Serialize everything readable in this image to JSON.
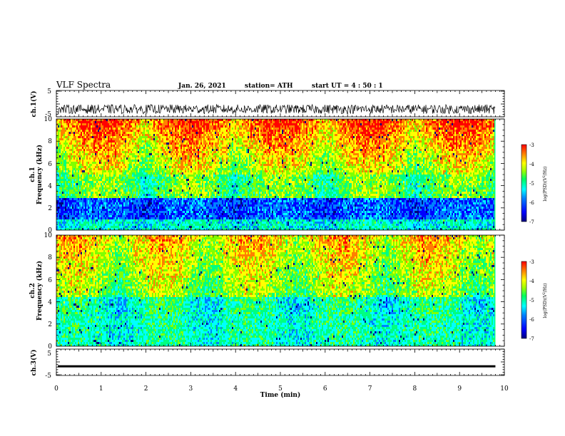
{
  "header": {
    "title": "VLF Spectra",
    "date": "Jan. 26, 2021",
    "station": "station= ATH",
    "start": "start  UT =   4 : 50 : 1"
  },
  "chart_data": [
    {
      "type": "line",
      "name": "ch1-waveform",
      "ylabel": "ch.1(V)",
      "y_ticks": [
        "5",
        "-5"
      ],
      "ylim": [
        -5,
        5
      ],
      "xlim": [
        0,
        10
      ],
      "data_extent_min": 9.8,
      "description_values": {
        "baseline": -2.0,
        "amplitude": 1.8
      }
    },
    {
      "type": "heatmap",
      "name": "ch1-spectrogram",
      "ylabel": "ch.1\nFrequency  (kHz)",
      "ylabel_lines": [
        "ch.1",
        "Frequency  (kHz)"
      ],
      "y_ticks": [
        "0",
        "2",
        "4",
        "6",
        "8",
        "10"
      ],
      "ylim": [
        0,
        10
      ],
      "xlim": [
        0,
        10
      ],
      "data_extent_min": 9.8,
      "colorbar": {
        "label": "log(PSD)(V²/Hz)",
        "label_base": "log(PSD)(V",
        "label_sup": "2",
        "label_end": "/Hz)",
        "ticks": [
          "-3",
          "-4",
          "-5",
          "-6",
          "-7"
        ],
        "range": [
          -7,
          -3
        ]
      }
    },
    {
      "type": "heatmap",
      "name": "ch2-spectrogram",
      "ylabel": "ch.2\nFrequency  (kHz)",
      "ylabel_lines": [
        "ch.2",
        "Frequency  (kHz)"
      ],
      "y_ticks": [
        "0",
        "2",
        "4",
        "6",
        "8",
        "10"
      ],
      "ylim": [
        0,
        10
      ],
      "xlim": [
        0,
        10
      ],
      "data_extent_min": 9.8,
      "colorbar": {
        "label": "log(PSD)(V²/Hz)",
        "label_base": "log(PSD)(V",
        "label_sup": "2",
        "label_end": "/Hz)",
        "ticks": [
          "-3",
          "-4",
          "-5",
          "-6",
          "-7"
        ],
        "range": [
          -7,
          -3
        ]
      }
    },
    {
      "type": "line",
      "name": "ch3-waveform",
      "ylabel": "ch.3(V)",
      "y_ticks": [
        "5",
        "-5"
      ],
      "ylim": [
        -5,
        5
      ],
      "xlim": [
        0,
        10
      ],
      "data_extent_min": 9.8,
      "description_values": {
        "baseline": -1.6,
        "amplitude": 0.3
      }
    }
  ],
  "xaxis": {
    "label": "Time  (min)",
    "ticks": [
      "0",
      "1",
      "2",
      "3",
      "4",
      "5",
      "6",
      "7",
      "8",
      "9",
      "10"
    ]
  },
  "colors": {
    "colormap": [
      "#000080",
      "#0000ff",
      "#0080ff",
      "#00ffff",
      "#00ff80",
      "#80ff00",
      "#ffff00",
      "#ff8000",
      "#ff0000"
    ]
  }
}
